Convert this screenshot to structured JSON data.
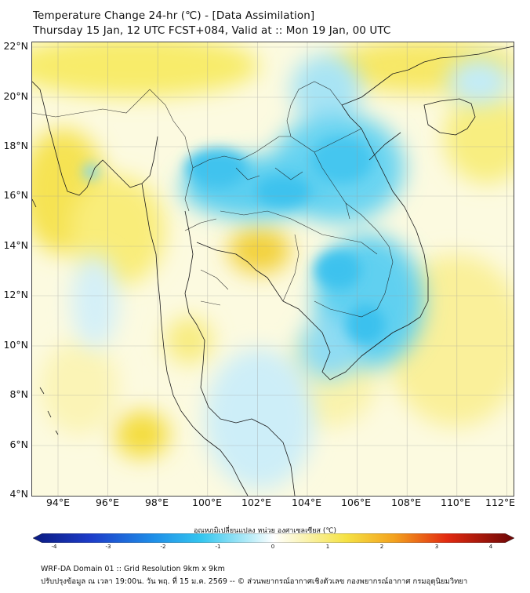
{
  "header": {
    "title_line1": "Temperature Change 24-hr (℃) - [Data Assimilation]",
    "title_line2": "Thursday 15 Jan, 12 UTC FCST+084, Valid at :: Mon 19 Jan, 00 UTC"
  },
  "map": {
    "lat_ticks": [
      "22°N",
      "20°N",
      "18°N",
      "16°N",
      "14°N",
      "12°N",
      "10°N",
      "8°N",
      "6°N",
      "4°N"
    ],
    "lon_ticks": [
      "94°E",
      "96°E",
      "98°E",
      "100°E",
      "102°E",
      "104°E",
      "106°E",
      "108°E",
      "110°E",
      "112°E"
    ],
    "lat_range": [
      4,
      22.2
    ],
    "lon_range": [
      93,
      112.4
    ]
  },
  "colorbar": {
    "title": "อุณหภูมิเปลี่ยนแปลง หน่วย องศาเซลเซียส (℃)",
    "labels": [
      "-4",
      "-3",
      "-2",
      "-1",
      "0",
      "1",
      "2",
      "3",
      "4"
    ],
    "range": [
      -4,
      4
    ]
  },
  "footer": {
    "line1": "WRF-DA Domain 01 :: Grid Resolution 9km x 9km",
    "line2": "ปรับปรุงข้อมูล ณ เวลา 19:00น. วัน พฤ. ที่ 15 ม.ค. 2569 -- © ส่วนพยากรณ์อากาศเชิงตัวเลข กองพยากรณ์อากาศ กรมอุตุนิยมวิทยา"
  },
  "colors": {
    "warm": "#f7e63a",
    "cool": "#35c8ee",
    "neutral": "#fcfbe2",
    "border": "#1a1a1a"
  }
}
